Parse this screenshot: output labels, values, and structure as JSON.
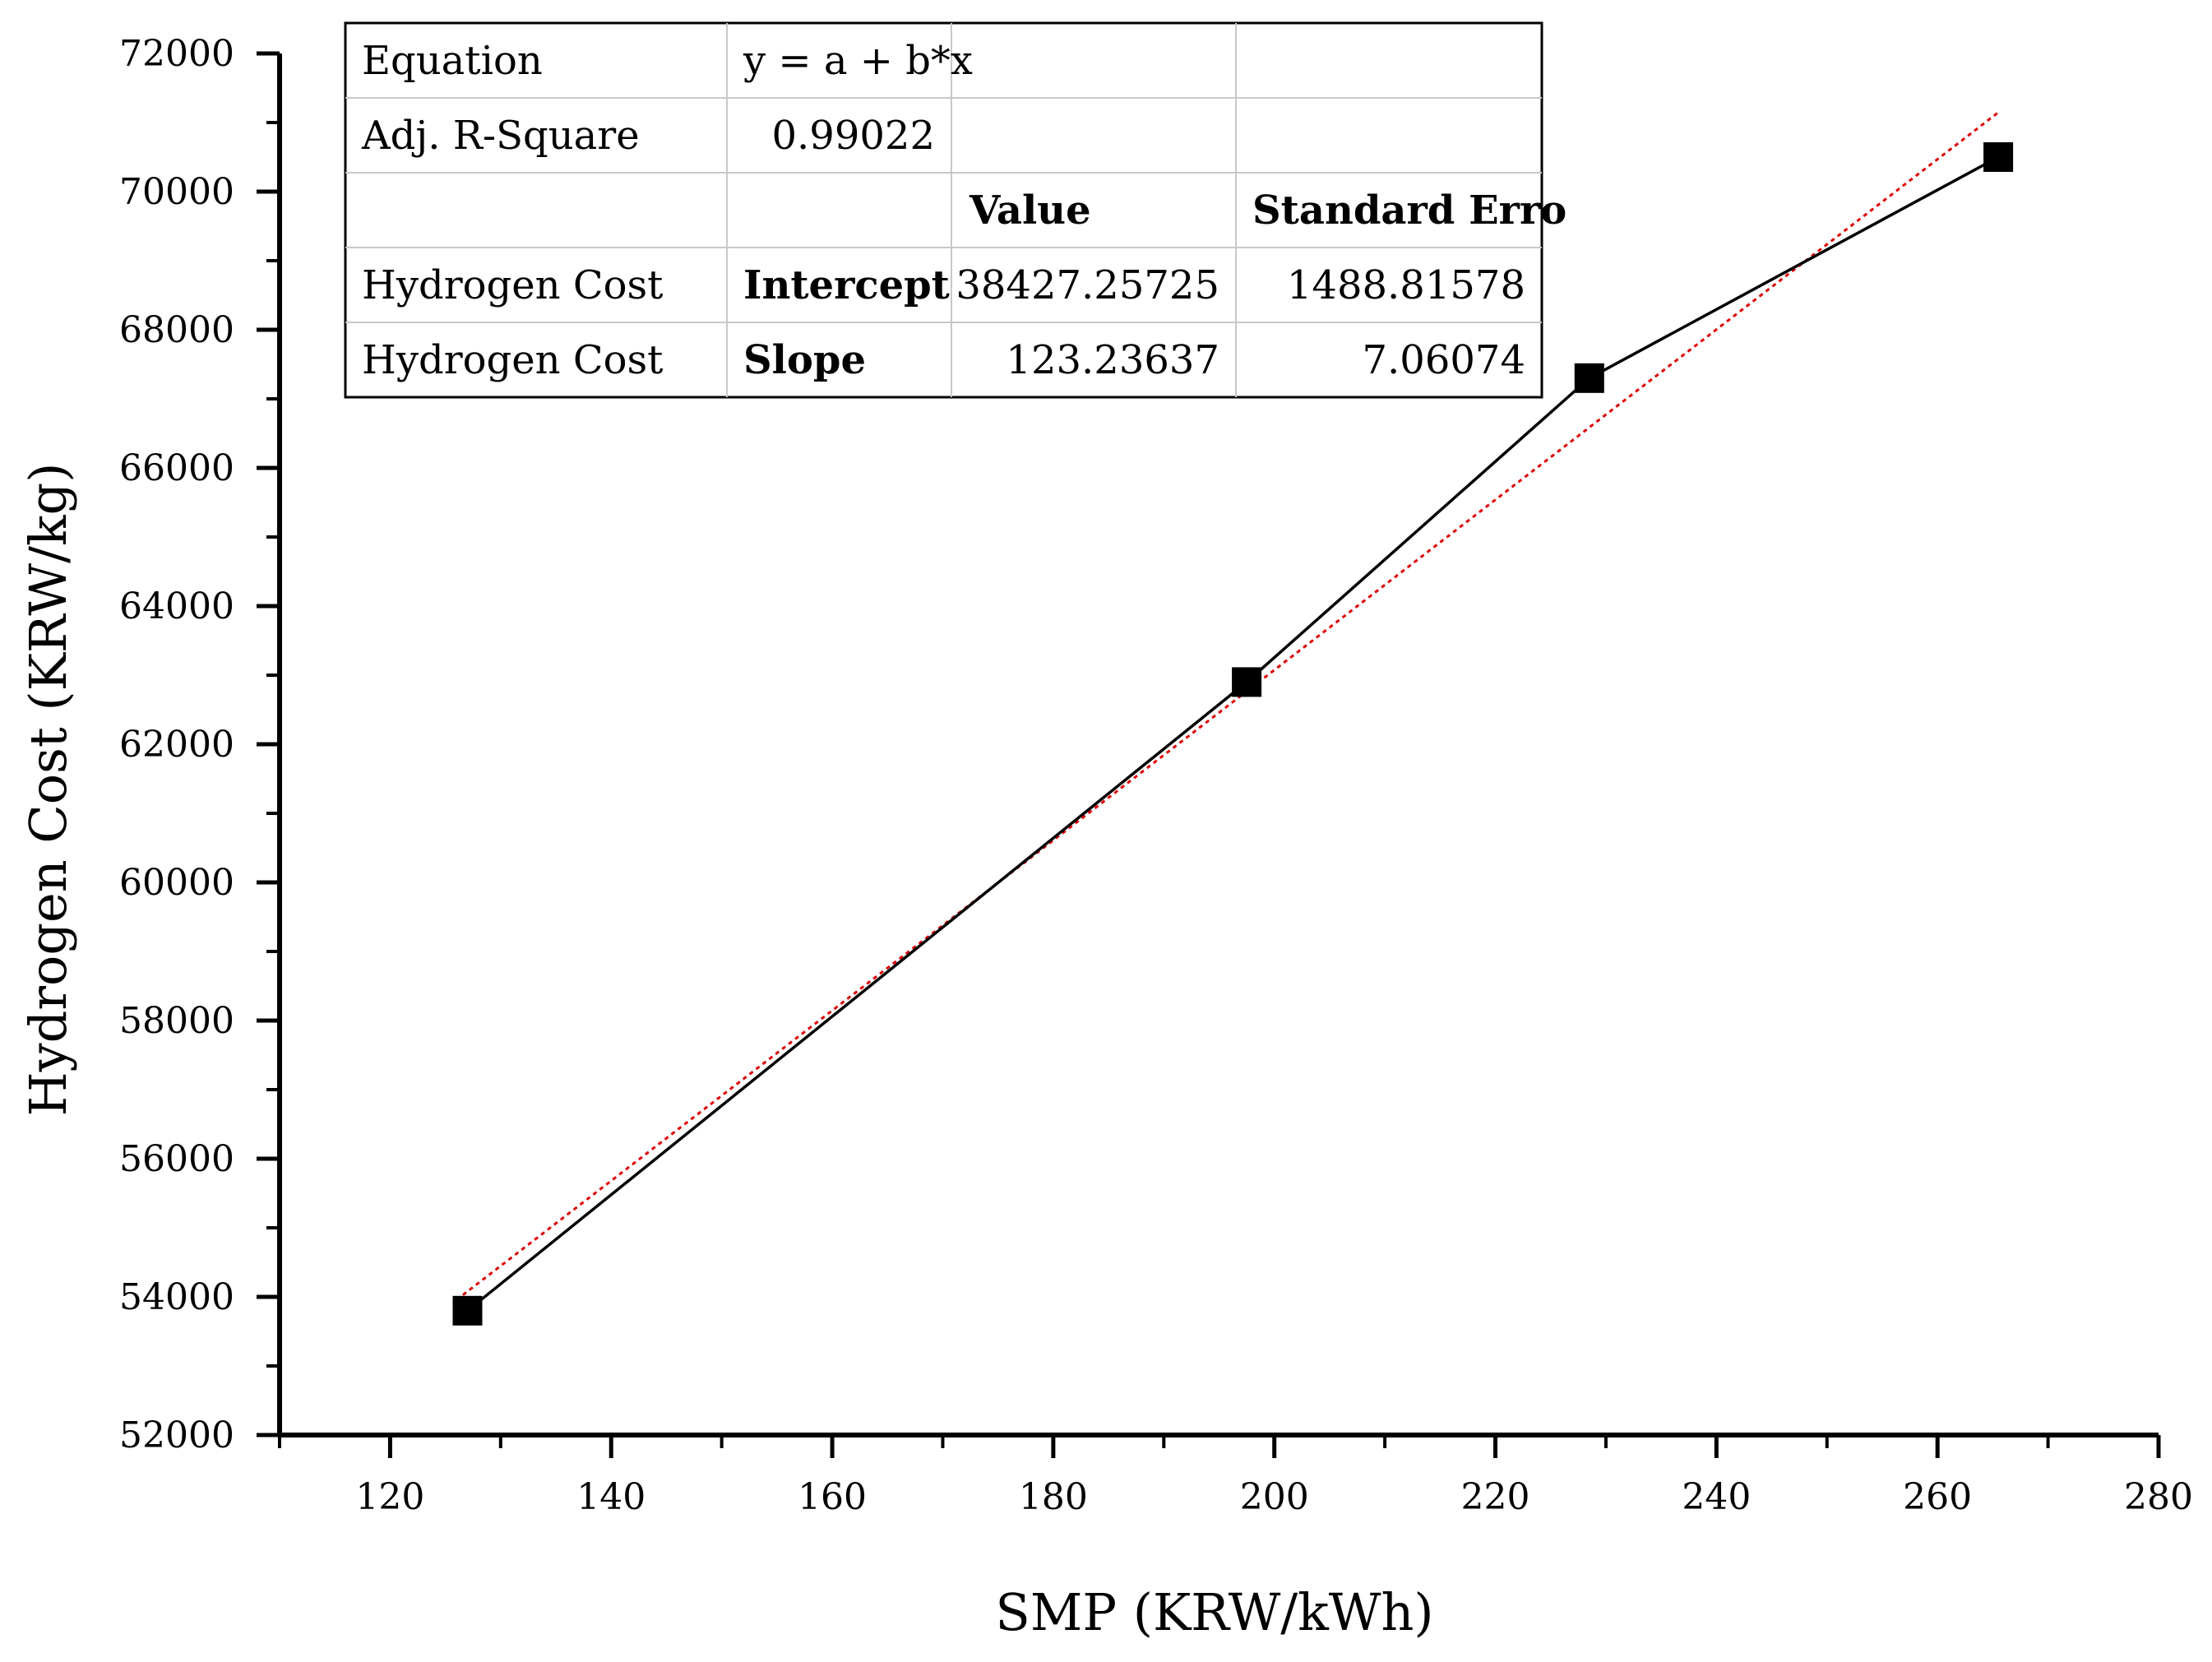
{
  "chart_data": {
    "type": "scatter",
    "title": "",
    "xlabel": "SMP (KRW/kWh)",
    "ylabel": "Hydrogen Cost (KRW/kg)",
    "xlim": [
      110,
      280
    ],
    "ylim": [
      52000,
      72000
    ],
    "x_ticks": [
      "120",
      "140",
      "160",
      "180",
      "200",
      "220",
      "240",
      "260",
      "280"
    ],
    "y_ticks": [
      "52000",
      "54000",
      "56000",
      "58000",
      "60000",
      "62000",
      "64000",
      "66000",
      "68000",
      "70000",
      "72000"
    ],
    "grid": false,
    "series": [
      {
        "name": "Hydrogen Cost",
        "style": "line-with-square-markers",
        "color": "#000000",
        "x": [
          127,
          197.5,
          228.5,
          265.5
        ],
        "y": [
          53800,
          62900,
          67300,
          70500
        ]
      },
      {
        "name": "Linear Fit",
        "style": "dotted-line",
        "color": "#e00000",
        "intercept": 38427.25725,
        "slope": 123.23637,
        "x_range": [
          126,
          265.5
        ]
      }
    ],
    "fit_table": {
      "rows": [
        [
          "Equation",
          "y = a + b*x",
          "",
          ""
        ],
        [
          "Adj. R-Square",
          "0.99022",
          "",
          ""
        ],
        [
          "",
          "",
          "Value",
          "Standard Erro"
        ],
        [
          "Hydrogen Cost",
          "Intercept",
          "38427.25725",
          "1488.81578"
        ],
        [
          "Hydrogen Cost",
          "Slope",
          "123.23637",
          "7.06074"
        ]
      ]
    }
  }
}
